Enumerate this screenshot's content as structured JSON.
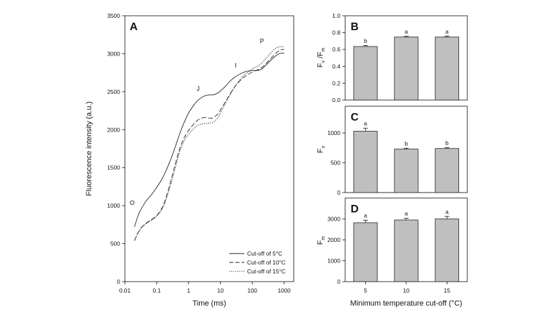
{
  "chart_data": [
    {
      "panel": "A",
      "type": "line",
      "xscale": "log",
      "xlabel": "Time (ms)",
      "ylabel": "Fluorescence intensity (a.u.)",
      "xlim": [
        0.01,
        2000
      ],
      "ylim": [
        0,
        3500
      ],
      "xticks": [
        0.01,
        0.1,
        1,
        10,
        100,
        1000
      ],
      "xtick_labels": [
        "0.01",
        "0.1",
        "1",
        "10",
        "100",
        "1000"
      ],
      "yticks": [
        0,
        500,
        1000,
        1500,
        2000,
        2500,
        3000,
        3500
      ],
      "ytick_labels": [
        "0",
        "500",
        "1000",
        "1500",
        "2000",
        "2500",
        "3000",
        "3500"
      ],
      "legend_position": "bottom-right",
      "series": [
        {
          "name": "Cut-off of 5°C",
          "style": "solid",
          "x": [
            0.02,
            0.025,
            0.03,
            0.04,
            0.05,
            0.07,
            0.1,
            0.15,
            0.2,
            0.3,
            0.5,
            0.7,
            1,
            1.5,
            2,
            3,
            4,
            6,
            8,
            10,
            15,
            20,
            30,
            50,
            70,
            100,
            150,
            200,
            300,
            500,
            700,
            1000
          ],
          "y": [
            720,
            850,
            930,
            1020,
            1080,
            1150,
            1240,
            1360,
            1470,
            1650,
            1920,
            2080,
            2220,
            2330,
            2390,
            2440,
            2455,
            2460,
            2480,
            2510,
            2580,
            2640,
            2700,
            2750,
            2770,
            2780,
            2780,
            2800,
            2870,
            2960,
            3000,
            3010
          ]
        },
        {
          "name": "Cut-off of 10°C",
          "style": "dashed",
          "x": [
            0.02,
            0.03,
            0.05,
            0.07,
            0.1,
            0.15,
            0.2,
            0.3,
            0.5,
            0.7,
            1,
            1.5,
            2,
            3,
            4,
            5,
            6,
            8,
            10,
            15,
            20,
            30,
            50,
            70,
            100,
            150,
            200,
            300,
            500,
            700,
            1000
          ],
          "y": [
            540,
            690,
            780,
            820,
            870,
            980,
            1120,
            1380,
            1720,
            1880,
            1990,
            2080,
            2130,
            2160,
            2155,
            2150,
            2160,
            2200,
            2260,
            2380,
            2470,
            2580,
            2680,
            2720,
            2760,
            2790,
            2820,
            2890,
            2990,
            3040,
            3060
          ]
        },
        {
          "name": "Cut-off of 15°C",
          "style": "dotted",
          "x": [
            0.02,
            0.03,
            0.05,
            0.07,
            0.1,
            0.15,
            0.2,
            0.3,
            0.5,
            0.7,
            1,
            1.5,
            2,
            3,
            4,
            5,
            6,
            8,
            10,
            15,
            20,
            30,
            50,
            70,
            100,
            150,
            200,
            300,
            500,
            700,
            1000
          ],
          "y": [
            540,
            690,
            770,
            810,
            860,
            960,
            1090,
            1330,
            1680,
            1840,
            1940,
            2020,
            2060,
            2080,
            2085,
            2090,
            2100,
            2150,
            2220,
            2360,
            2460,
            2580,
            2700,
            2750,
            2800,
            2840,
            2880,
            2960,
            3060,
            3090,
            3090
          ]
        }
      ],
      "annotations": [
        {
          "text": "O",
          "x": 0.017,
          "y": 1010
        },
        {
          "text": "J",
          "x": 2.0,
          "y": 2510
        },
        {
          "text": "I",
          "x": 30,
          "y": 2820
        },
        {
          "text": "P",
          "x": 200,
          "y": 3140
        }
      ]
    },
    {
      "panel": "B",
      "type": "bar",
      "categories": [
        "5",
        "10",
        "15"
      ],
      "values": [
        0.635,
        0.748,
        0.748
      ],
      "errors": [
        0.012,
        0.008,
        0.01
      ],
      "significance": [
        "b",
        "a",
        "a"
      ],
      "ylabel": "Fv/Fm",
      "ylim": [
        0,
        1.0
      ],
      "yticks": [
        0,
        0.2,
        0.4,
        0.6,
        0.8,
        1.0
      ],
      "ytick_labels": [
        "0.0",
        "0.2",
        "0.4",
        "0.6",
        "0.8",
        "1.0"
      ]
    },
    {
      "panel": "C",
      "type": "bar",
      "categories": [
        "5",
        "10",
        "15"
      ],
      "values": [
        1030,
        730,
        740
      ],
      "errors": [
        50,
        15,
        15
      ],
      "significance": [
        "a",
        "b",
        "b"
      ],
      "ylabel": "Fo",
      "ylim": [
        0,
        1450
      ],
      "yticks": [
        0,
        500,
        1000
      ],
      "ytick_labels": [
        "0",
        "500",
        "1000"
      ]
    },
    {
      "panel": "D",
      "type": "bar",
      "categories": [
        "5",
        "10",
        "15"
      ],
      "values": [
        2820,
        2950,
        3000
      ],
      "errors": [
        120,
        80,
        120
      ],
      "significance": [
        "a",
        "a",
        "a"
      ],
      "xlabel": "Minimum temperature cut-off (°C)",
      "ylabel": "Fm",
      "ylim": [
        0,
        4000
      ],
      "yticks": [
        0,
        1000,
        2000,
        3000
      ],
      "ytick_labels": [
        "0",
        "1000",
        "2000",
        "3000"
      ]
    }
  ],
  "text": {
    "fvfm_main": "F",
    "fvfm_sub1": "v",
    "fvfm_sep": " /F",
    "fvfm_sub2": "m",
    "fo_main": "F",
    "fo_sub": "o",
    "fm_main": "F",
    "fm_sub": "m"
  },
  "colors": {
    "bar_fill": "#bfbfbf",
    "bar_stroke": "#222222",
    "line": "#222222",
    "axis": "#222222"
  }
}
